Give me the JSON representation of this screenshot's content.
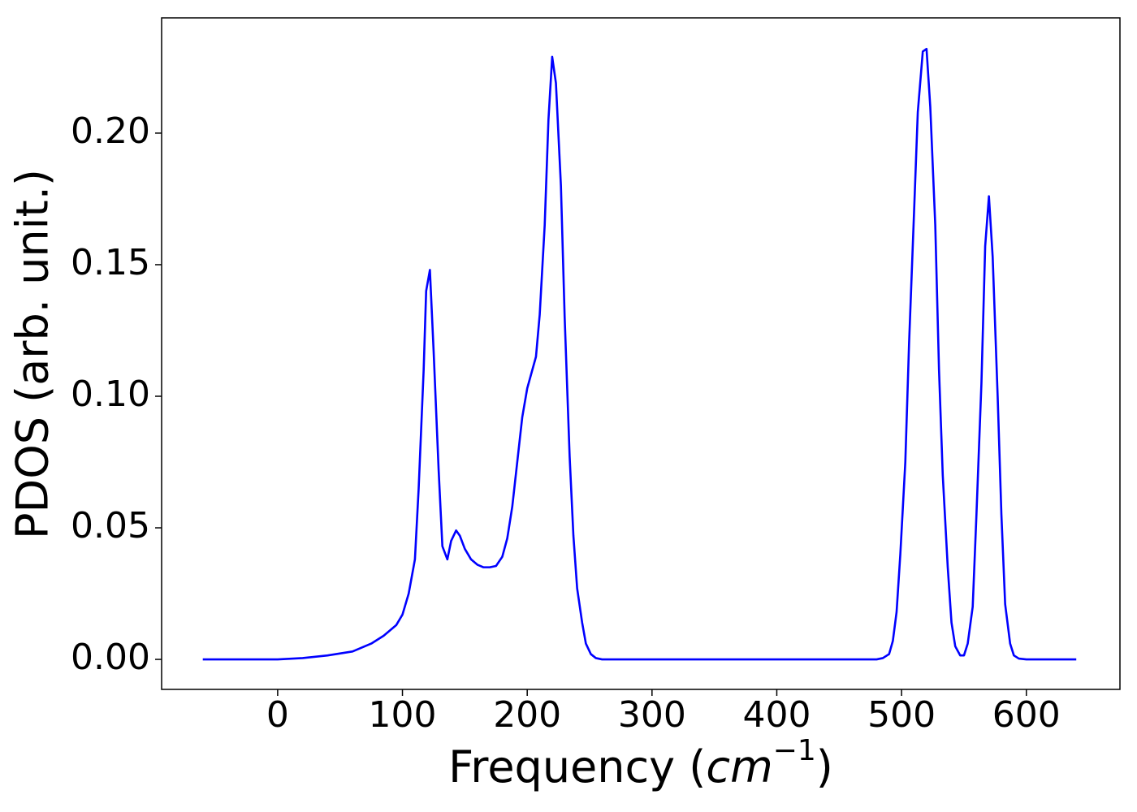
{
  "chart_data": {
    "type": "line",
    "x_label": [
      "Frequency (",
      "cm",
      "−1",
      ")"
    ],
    "y_label": "PDOS (arb. unit.)",
    "x": [
      -60,
      0,
      20,
      40,
      60,
      75,
      85,
      95,
      100,
      105,
      110,
      113,
      117,
      119,
      122,
      125,
      129,
      132,
      136,
      139,
      143,
      146,
      150,
      155,
      160,
      165,
      170,
      175,
      180,
      184,
      188,
      192,
      196,
      200,
      207,
      210,
      214,
      217,
      220,
      223,
      227,
      230,
      234,
      237,
      240,
      244,
      247,
      251,
      255,
      260,
      300,
      400,
      480,
      485,
      490,
      493,
      496,
      499,
      503,
      506,
      510,
      513,
      517,
      520,
      523,
      527,
      530,
      533,
      537,
      540,
      543,
      547,
      550,
      553,
      557,
      560,
      564,
      567,
      570,
      573,
      577,
      580,
      583,
      587,
      590,
      594,
      600,
      640
    ],
    "series": [
      {
        "color": "#0000ff",
        "values": [
          0,
          0,
          0.0005,
          0.0015,
          0.003,
          0.006,
          0.009,
          0.013,
          0.017,
          0.025,
          0.038,
          0.065,
          0.11,
          0.14,
          0.148,
          0.117,
          0.072,
          0.043,
          0.038,
          0.045,
          0.049,
          0.047,
          0.042,
          0.038,
          0.036,
          0.035,
          0.035,
          0.0355,
          0.039,
          0.046,
          0.058,
          0.075,
          0.092,
          0.103,
          0.115,
          0.131,
          0.165,
          0.205,
          0.229,
          0.219,
          0.18,
          0.13,
          0.077,
          0.047,
          0.027,
          0.014,
          0.006,
          0.002,
          0.0005,
          0,
          0,
          0,
          0,
          0.0005,
          0.002,
          0.007,
          0.018,
          0.04,
          0.075,
          0.12,
          0.17,
          0.208,
          0.231,
          0.232,
          0.21,
          0.165,
          0.11,
          0.07,
          0.035,
          0.014,
          0.005,
          0.0015,
          0.0015,
          0.006,
          0.02,
          0.055,
          0.105,
          0.157,
          0.176,
          0.153,
          0.1,
          0.055,
          0.021,
          0.006,
          0.0015,
          0.0003,
          0,
          0
        ]
      }
    ],
    "xlim": [
      -93,
      675
    ],
    "ylim": [
      -0.0114,
      0.2438
    ],
    "xticks": [
      0,
      100,
      200,
      300,
      400,
      500,
      600
    ],
    "yticks": [
      {
        "value": 0,
        "label": "0.00"
      },
      {
        "value": 0.05,
        "label": "0.05"
      },
      {
        "value": 0.1,
        "label": "0.10"
      },
      {
        "value": 0.15,
        "label": "0.15"
      },
      {
        "value": 0.2,
        "label": "0.20"
      }
    ]
  }
}
